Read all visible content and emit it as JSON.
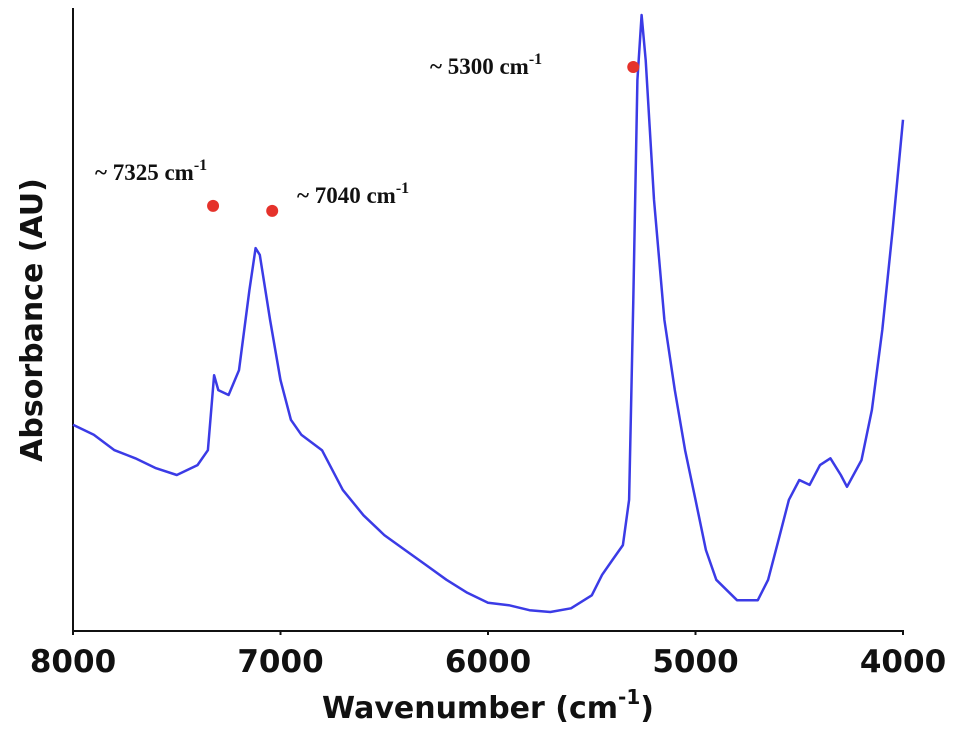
{
  "chart_data": {
    "type": "line",
    "x_label": {
      "text": "Wavenumber (cm",
      "sup": "-1",
      "close": ")"
    },
    "y_label": "Absorbance (AU)",
    "x": [
      8000,
      7900,
      7800,
      7700,
      7600,
      7500,
      7400,
      7350,
      7320,
      7300,
      7250,
      7200,
      7150,
      7120,
      7100,
      7050,
      7000,
      6950,
      6900,
      6800,
      6700,
      6600,
      6500,
      6400,
      6300,
      6200,
      6100,
      6000,
      5900,
      5800,
      5700,
      5600,
      5500,
      5450,
      5400,
      5350,
      5320,
      5300,
      5280,
      5260,
      5240,
      5200,
      5150,
      5100,
      5050,
      5000,
      4950,
      4900,
      4800,
      4700,
      4650,
      4600,
      4550,
      4500,
      4450,
      4400,
      4350,
      4300,
      4270,
      4200,
      4150,
      4100,
      4050,
      4000
    ],
    "values": [
      0.331,
      0.315,
      0.29,
      0.277,
      0.261,
      0.25,
      0.266,
      0.29,
      0.411,
      0.387,
      0.379,
      0.419,
      0.548,
      0.616,
      0.605,
      0.5,
      0.403,
      0.339,
      0.315,
      0.29,
      0.226,
      0.185,
      0.153,
      0.129,
      0.105,
      0.081,
      0.06,
      0.044,
      0.04,
      0.032,
      0.029,
      0.035,
      0.056,
      0.089,
      0.113,
      0.137,
      0.21,
      0.532,
      0.887,
      0.992,
      0.919,
      0.694,
      0.5,
      0.387,
      0.29,
      0.21,
      0.129,
      0.081,
      0.048,
      0.048,
      0.081,
      0.145,
      0.21,
      0.242,
      0.234,
      0.266,
      0.277,
      0.25,
      0.231,
      0.274,
      0.355,
      0.484,
      0.645,
      0.823
    ],
    "color": "#3b3be6",
    "xlim": [
      8000,
      4000
    ],
    "xticks": [
      8000,
      7000,
      6000,
      5000,
      4000
    ],
    "ylim": [
      0,
      1
    ],
    "annotations": [
      {
        "text": "~ 7325 cm",
        "sup": "-1",
        "x": 7325,
        "y": 0.684,
        "color": "#e5322b"
      },
      {
        "text": "~ 7040 cm",
        "sup": "-1",
        "x": 7040,
        "y": 0.676,
        "color": "#e5322b"
      },
      {
        "text": "~ 5300 cm",
        "sup": "-1",
        "x": 5300,
        "y": 0.908,
        "color": "#e5322b"
      }
    ]
  }
}
